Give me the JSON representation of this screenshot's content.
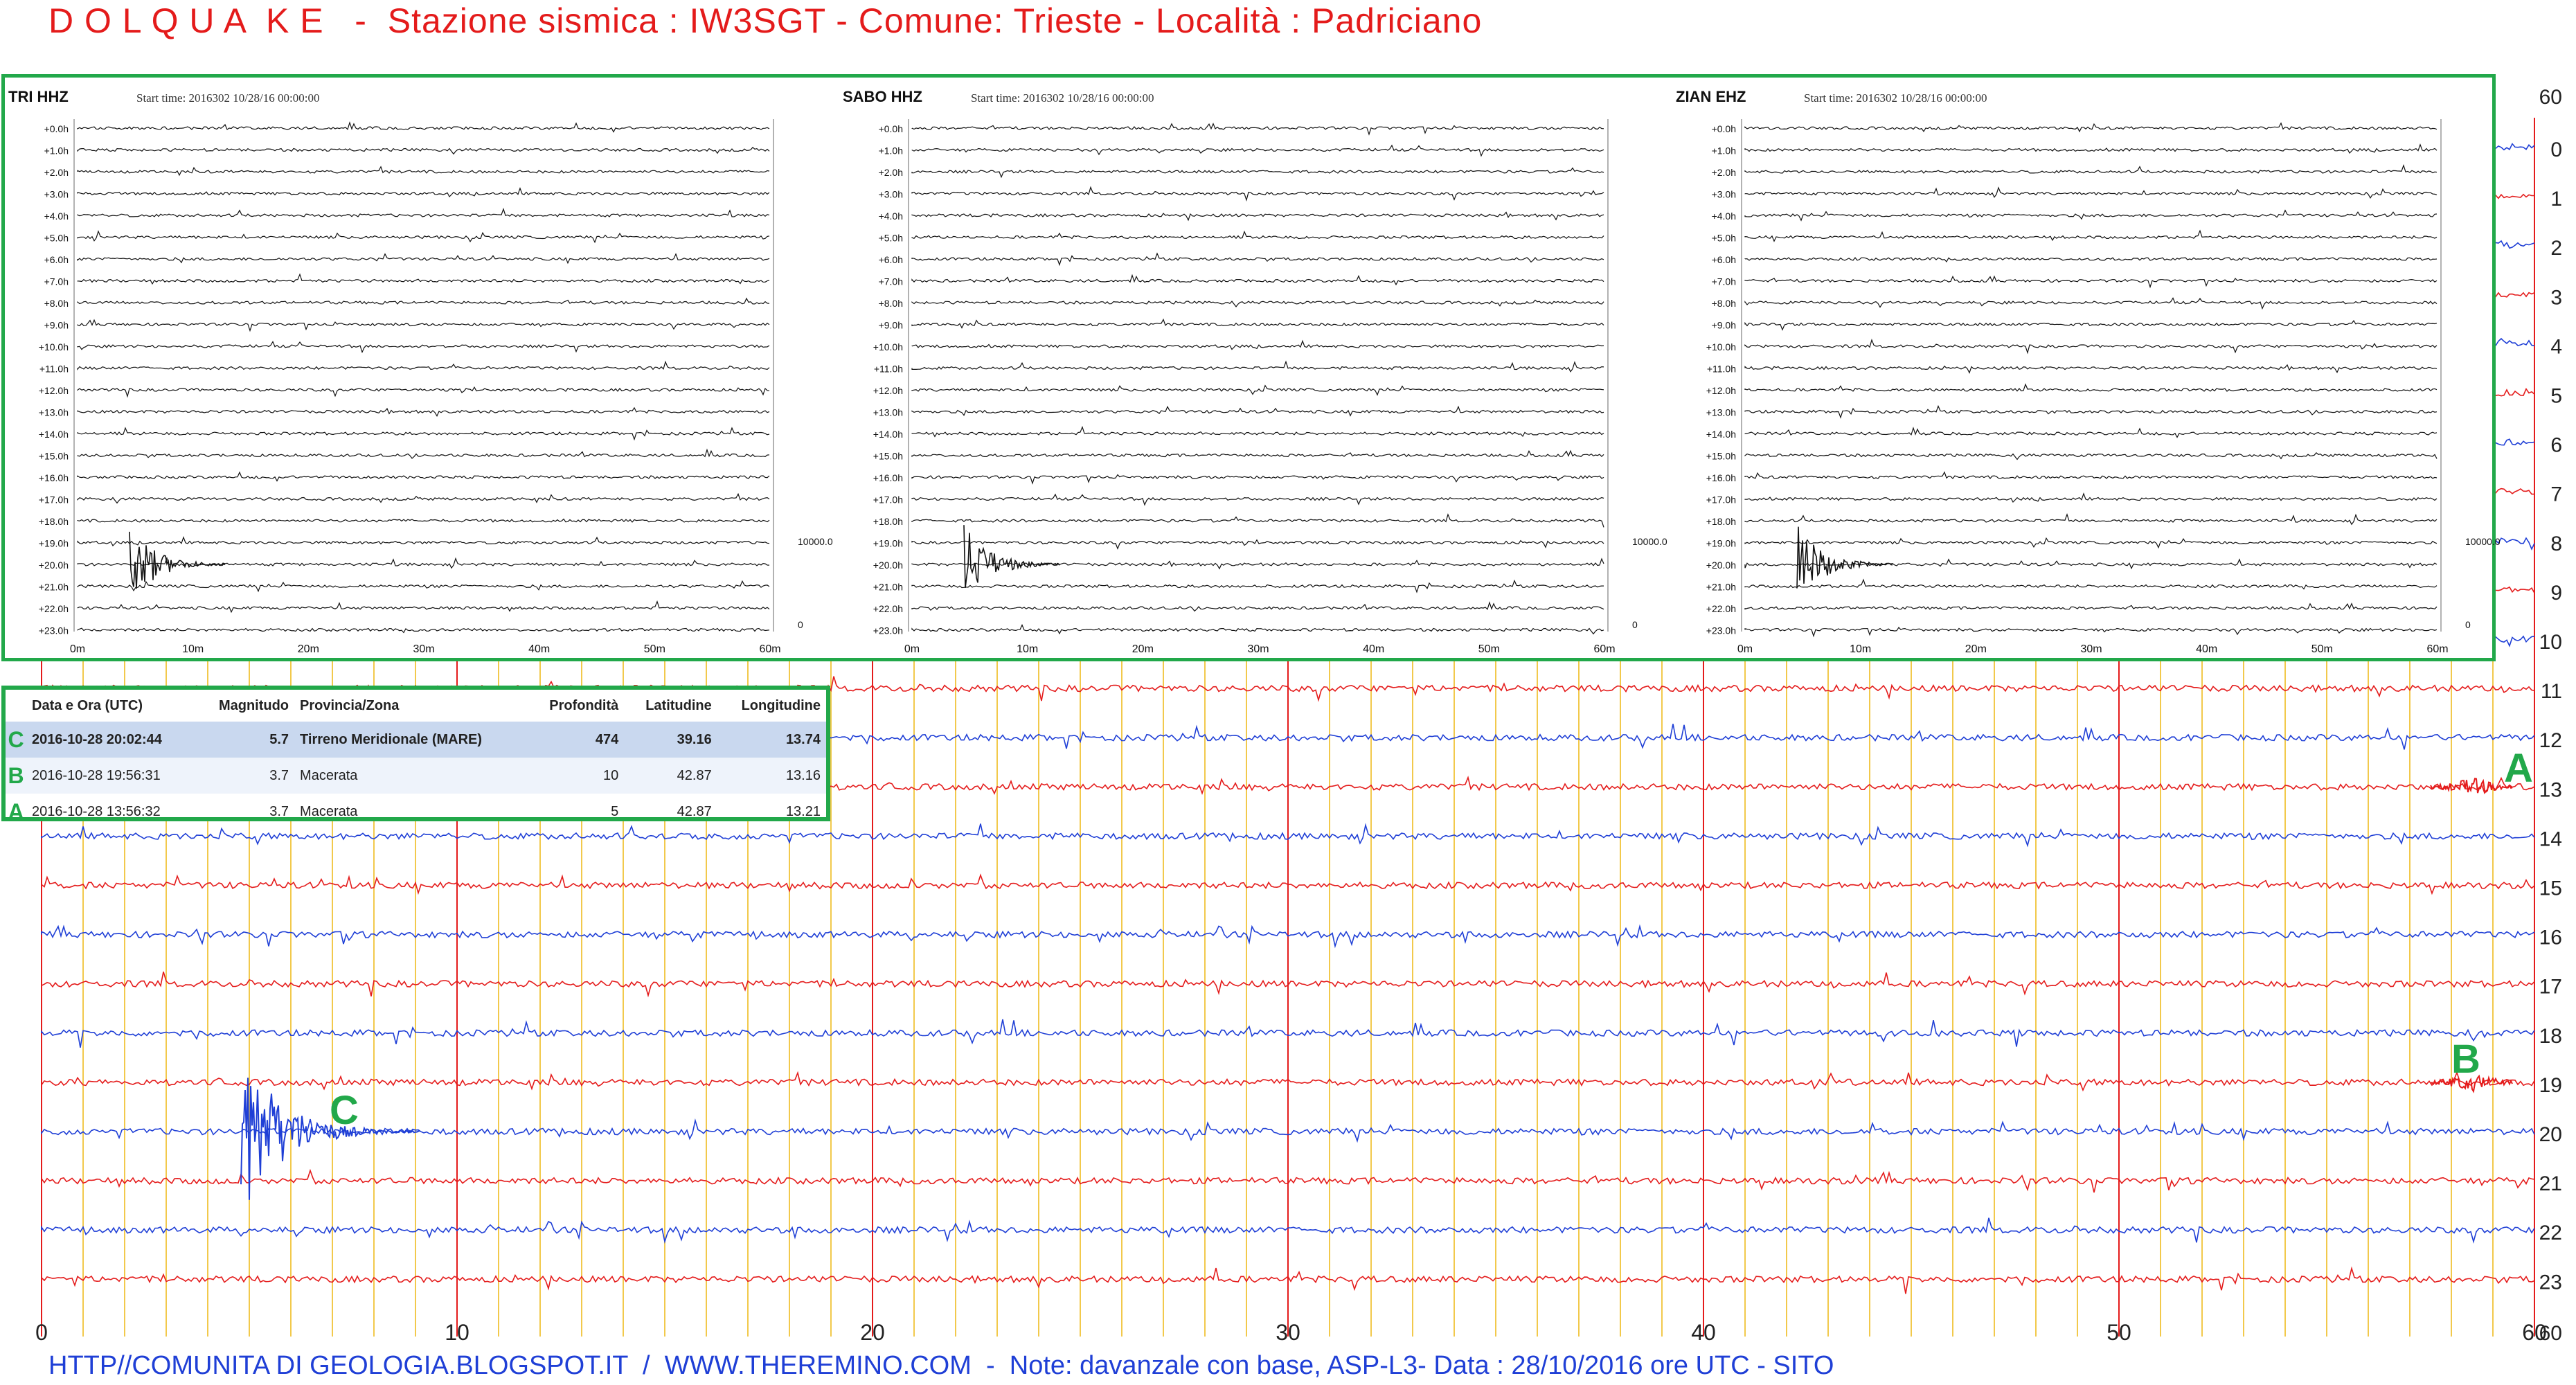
{
  "header": {
    "title": "D O L Q U A  K E   -  Stazione sismica : IW3SGT - Comune: Trieste - Località : Padriciano"
  },
  "footer": {
    "note": "HTTP//COMUNITA DI GEOLOGIA.BLOGSPOT.IT  /  WWW.THEREMINO.COM  -  Note: davanzale con base, ASP-L3- Data : 28/10/2016 ore UTC - SITO"
  },
  "chart_data": [
    {
      "type": "line",
      "description_kind": "helicorder",
      "x_ticks": [
        "0",
        "10",
        "20",
        "30",
        "40",
        "50",
        "60"
      ],
      "xlim": [
        0,
        60
      ],
      "top_right_label": "60",
      "bottom_right_label": "60",
      "rows": [
        "0",
        "1",
        "2",
        "3",
        "4",
        "5",
        "6",
        "7",
        "8",
        "9",
        "10",
        "11",
        "12",
        "13",
        "14",
        "15",
        "16",
        "17",
        "18",
        "19",
        "20",
        "21",
        "22",
        "23"
      ],
      "row_colors": [
        "#1f3fd6",
        "#e41b1b"
      ],
      "grid_minor_color": "#f2c94c",
      "grid_major_color": "#e41b1b",
      "events": [
        {
          "label": "C",
          "row": 20,
          "minute": 4.8,
          "amplitude": "large"
        },
        {
          "label": "B",
          "row": 19,
          "minute": 58.5,
          "amplitude": "small"
        },
        {
          "label": "A",
          "row": 13,
          "minute": 58.5,
          "amplitude": "small"
        }
      ]
    },
    {
      "type": "line",
      "station": "TRI HHZ",
      "start_time": "Start time: 2016302 10/28/16 00:00:00",
      "hour_labels": [
        "+0.0h",
        "+1.0h",
        "+2.0h",
        "+3.0h",
        "+4.0h",
        "+5.0h",
        "+6.0h",
        "+7.0h",
        "+8.0h",
        "+9.0h",
        "+10.0h",
        "+11.0h",
        "+12.0h",
        "+13.0h",
        "+14.0h",
        "+15.0h",
        "+16.0h",
        "+17.0h",
        "+18.0h",
        "+19.0h",
        "+20.0h",
        "+21.0h",
        "+22.0h",
        "+23.0h"
      ],
      "x_ticks": [
        "0m",
        "10m",
        "20m",
        "30m",
        "40m",
        "50m",
        "60m"
      ],
      "scale_label": "10000.0",
      "scale_zero": "0"
    },
    {
      "type": "line",
      "station": "SABO HHZ",
      "start_time": "Start time: 2016302 10/28/16 00:00:00",
      "hour_labels": [
        "+0.0h",
        "+1.0h",
        "+2.0h",
        "+3.0h",
        "+4.0h",
        "+5.0h",
        "+6.0h",
        "+7.0h",
        "+8.0h",
        "+9.0h",
        "+10.0h",
        "+11.0h",
        "+12.0h",
        "+13.0h",
        "+14.0h",
        "+15.0h",
        "+16.0h",
        "+17.0h",
        "+18.0h",
        "+19.0h",
        "+20.0h",
        "+21.0h",
        "+22.0h",
        "+23.0h"
      ],
      "x_ticks": [
        "0m",
        "10m",
        "20m",
        "30m",
        "40m",
        "50m",
        "60m"
      ],
      "scale_label": "10000.0",
      "scale_zero": "0"
    },
    {
      "type": "line",
      "station": "ZIAN EHZ",
      "start_time": "Start time: 2016302 10/28/16 00:00:00",
      "hour_labels": [
        "+0.0h",
        "+1.0h",
        "+2.0h",
        "+3.0h",
        "+4.0h",
        "+5.0h",
        "+6.0h",
        "+7.0h",
        "+8.0h",
        "+9.0h",
        "+10.0h",
        "+11.0h",
        "+12.0h",
        "+13.0h",
        "+14.0h",
        "+15.0h",
        "+16.0h",
        "+17.0h",
        "+18.0h",
        "+19.0h",
        "+20.0h",
        "+21.0h",
        "+22.0h",
        "+23.0h"
      ],
      "x_ticks": [
        "0m",
        "10m",
        "20m",
        "30m",
        "40m",
        "50m",
        "60m"
      ],
      "scale_label": "10000.0",
      "scale_zero": "0"
    }
  ],
  "quake_table": {
    "columns": [
      "Data e Ora (UTC)",
      "Magnitudo",
      "Provincia/Zona",
      "Profondità",
      "Latitudine",
      "Longitudine"
    ],
    "rows": [
      {
        "letter": "C",
        "datetime": "2016-10-28 20:02:44",
        "mag": "5.7",
        "zone": "Tirreno Meridionale (MARE)",
        "depth": "474",
        "lat": "39.16",
        "lon": "13.74"
      },
      {
        "letter": "B",
        "datetime": "2016-10-28 19:56:31",
        "mag": "3.7",
        "zone": "Macerata",
        "depth": "10",
        "lat": "42.87",
        "lon": "13.16"
      },
      {
        "letter": "A",
        "datetime": "2016-10-28 13:56:32",
        "mag": "3.7",
        "zone": "Macerata",
        "depth": "5",
        "lat": "42.87",
        "lon": "13.21"
      }
    ]
  },
  "labels": {
    "event_a": "A",
    "event_b": "B",
    "event_c": "C"
  }
}
